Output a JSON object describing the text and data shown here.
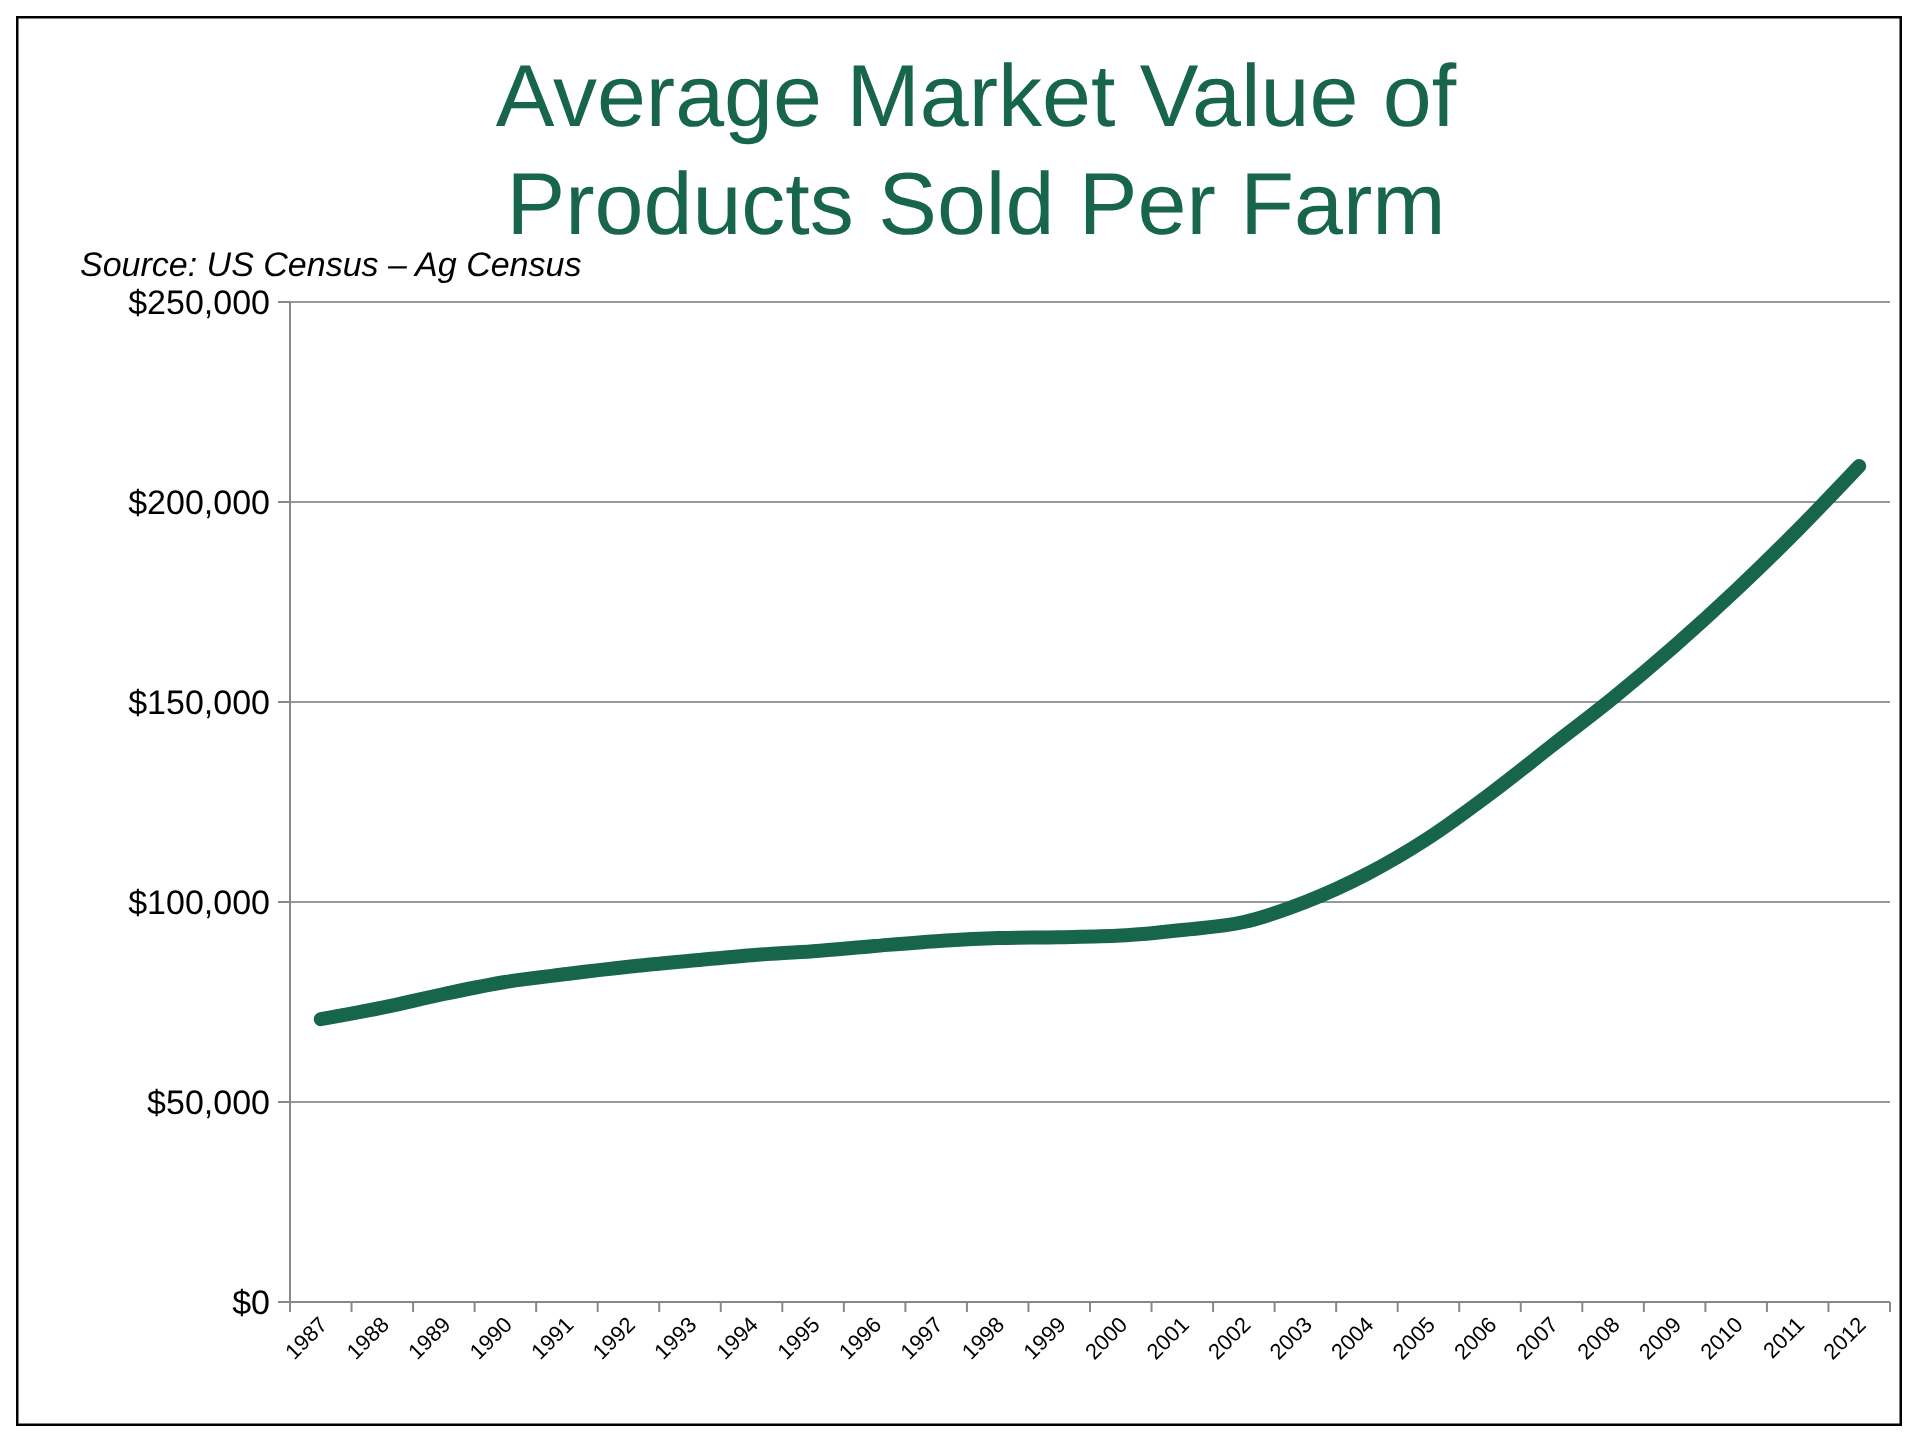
{
  "chart_data": {
    "type": "line",
    "title": "Average Market Value of Products Sold Per Farm",
    "annotations": [
      "Source: US Census – Ag Census"
    ],
    "categories": [
      "1987",
      "1988",
      "1989",
      "1990",
      "1991",
      "1992",
      "1993",
      "1994",
      "1995",
      "1996",
      "1997",
      "1998",
      "1999",
      "2000",
      "2001",
      "2002",
      "2003",
      "2004",
      "2005",
      "2006",
      "2007",
      "2008",
      "2009",
      "2010",
      "2011",
      "2012"
    ],
    "series": [
      {
        "color": "#17654a",
        "values": [
          70700,
          73600,
          77000,
          80000,
          82000,
          83800,
          85300,
          86700,
          87700,
          89000,
          90200,
          91000,
          91200,
          91600,
          93000,
          95000,
          100000,
          107000,
          116000,
          127000,
          139000,
          151000,
          164000,
          178000,
          193000,
          209000
        ]
      }
    ],
    "ylim": [
      0,
      250000
    ],
    "yticks": [
      {
        "value": 0,
        "label": "$0"
      },
      {
        "value": 50000,
        "label": "$50,000"
      },
      {
        "value": 100000,
        "label": "$100,000"
      },
      {
        "value": 150000,
        "label": "$150,000"
      },
      {
        "value": 200000,
        "label": "$200,000"
      },
      {
        "value": 250000,
        "label": "$250,000"
      }
    ],
    "grid": "y",
    "marker": "none",
    "line_style": "solid"
  }
}
